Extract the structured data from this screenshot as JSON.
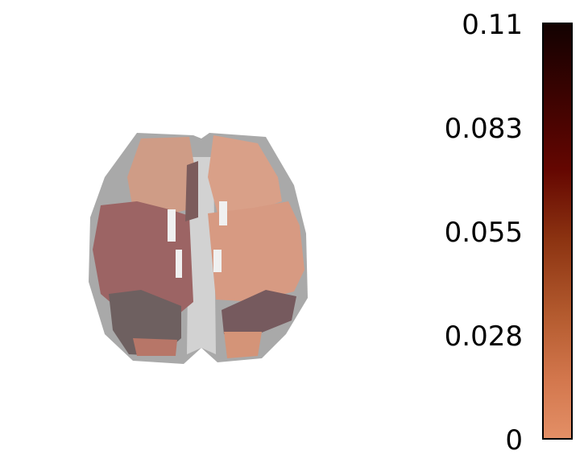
{
  "colorbar": {
    "ticks": [
      "0.11",
      "0.083",
      "0.055",
      "0.028",
      "0"
    ],
    "min": 0,
    "max": 0.11,
    "colormap": [
      "#130201",
      "#640601",
      "#b35a2e",
      "#e38f66"
    ]
  },
  "colors": {
    "background_tissue": "#a9a9a9",
    "left_hemisphere_region": "#9c6262",
    "right_hemisphere_region": "#d79a82",
    "low_value_region": "#6e5c5e"
  }
}
